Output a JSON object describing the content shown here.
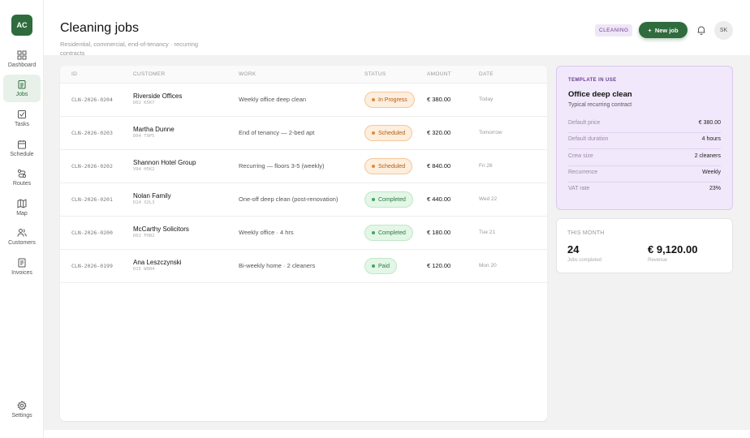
{
  "brand": {
    "initials": "AC",
    "accent": "#2f6b3d"
  },
  "nav": [
    {
      "label": "Dashboard",
      "icon": "grid-icon",
      "active": false
    },
    {
      "label": "Jobs",
      "icon": "clipboard-icon",
      "active": true
    },
    {
      "label": "Tasks",
      "icon": "checkbox-icon",
      "active": false
    },
    {
      "label": "Schedule",
      "icon": "calendar-icon",
      "active": false
    },
    {
      "label": "Routes",
      "icon": "route-icon",
      "active": false
    },
    {
      "label": "Map",
      "icon": "map-icon",
      "active": false
    },
    {
      "label": "Customers",
      "icon": "users-icon",
      "active": false
    },
    {
      "label": "Invoices",
      "icon": "invoice-icon",
      "active": false
    },
    {
      "label": "Settings",
      "icon": "gear-icon",
      "active": false
    }
  ],
  "header": {
    "title": "Cleaning jobs",
    "subtitle": "Residential, commercial, end-of-tenancy · recurring contracts",
    "tag": "CLEANING",
    "new_button": "New job",
    "avatar": "SK"
  },
  "table": {
    "columns": [
      "ID",
      "CUSTOMER",
      "WORK",
      "STATUS",
      "AMOUNT",
      "DATE"
    ],
    "rows": [
      {
        "id": "CLN-2026-0204",
        "customer": "Riverside Offices",
        "eircode": "D02 K5K7",
        "work": "Weekly office deep clean",
        "status": "In Progress",
        "status_kind": "progress",
        "amount": "€ 380.00",
        "date": "Today"
      },
      {
        "id": "CLN-2026-0203",
        "customer": "Martha Dunne",
        "eircode": "D04 T9P5",
        "work": "End of tenancy — 2-bed apt",
        "status": "Scheduled",
        "status_kind": "progress",
        "amount": "€ 320.00",
        "date": "Tomorrow"
      },
      {
        "id": "CLN-2026-0202",
        "customer": "Shannon Hotel Group",
        "eircode": "V94 H5K2",
        "work": "Recurring — floors 3-5 (weekly)",
        "status": "Scheduled",
        "status_kind": "progress",
        "amount": "€ 840.00",
        "date": "Fri 26"
      },
      {
        "id": "CLN-2026-0201",
        "customer": "Nolan Family",
        "eircode": "D14 X2L3",
        "work": "One-off deep clean (post-renovation)",
        "status": "Completed",
        "status_kind": "completed",
        "amount": "€ 440.00",
        "date": "Wed 22"
      },
      {
        "id": "CLN-2026-0200",
        "customer": "McCarthy Solicitors",
        "eircode": "D02 FH82",
        "work": "Weekly office · 4 hrs",
        "status": "Completed",
        "status_kind": "completed",
        "amount": "€ 180.00",
        "date": "Tue 21"
      },
      {
        "id": "CLN-2026-0199",
        "customer": "Ana Leszczynski",
        "eircode": "D15 W9R4",
        "work": "Bi-weekly home · 2 cleaners",
        "status": "Paid",
        "status_kind": "completed",
        "amount": "€ 120.00",
        "date": "Mon 20"
      }
    ]
  },
  "template": {
    "kicker": "TEMPLATE IN USE",
    "name": "Office deep clean",
    "description": "Typical recurring contract",
    "fields": [
      {
        "key": "Default price",
        "value": "€ 380.00"
      },
      {
        "key": "Default duration",
        "value": "4 hours"
      },
      {
        "key": "Crew size",
        "value": "2 cleaners"
      },
      {
        "key": "Recurrence",
        "value": "Weekly"
      },
      {
        "key": "VAT rate",
        "value": "23%"
      }
    ]
  },
  "month": {
    "kicker": "THIS MONTH",
    "jobs_value": "24",
    "jobs_label": "Jobs completed",
    "revenue_value": "€ 9,120.00",
    "revenue_label": "Revenue"
  }
}
